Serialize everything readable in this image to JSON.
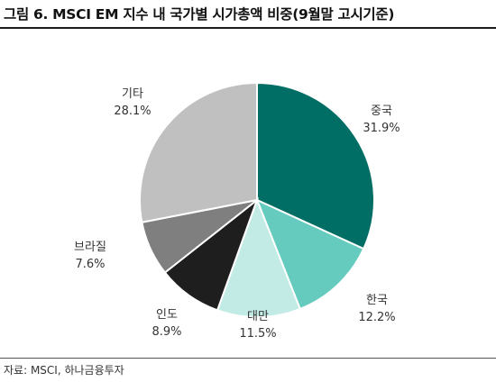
{
  "title": "그림 6. MSCI EM 지수 내 국가별 시가총액 비중(9월말 고시기준)",
  "source": "자료: MSCI, 하나금융투자",
  "chart_data": {
    "type": "pie",
    "title": "그림 6. MSCI EM 지수 내 국가별 시가총액 비중(9월말 고시기준)",
    "start_angle": "12 o'clock",
    "direction": "clockwise",
    "unit": "%",
    "slices": [
      {
        "name": "중국",
        "value": 31.9,
        "label": "31.9%",
        "color": "#006e64"
      },
      {
        "name": "한국",
        "value": 12.2,
        "label": "12.2%",
        "color": "#66cbbf"
      },
      {
        "name": "대만",
        "value": 11.5,
        "label": "11.5%",
        "color": "#c2ebe6"
      },
      {
        "name": "인도",
        "value": 8.9,
        "label": "8.9%",
        "color": "#1e1e1e"
      },
      {
        "name": "브라질",
        "value": 7.6,
        "label": "7.6%",
        "color": "#7f7f7f"
      },
      {
        "name": "기타",
        "value": 28.1,
        "label": "28.1%",
        "color": "#c0c0c0"
      }
    ]
  }
}
